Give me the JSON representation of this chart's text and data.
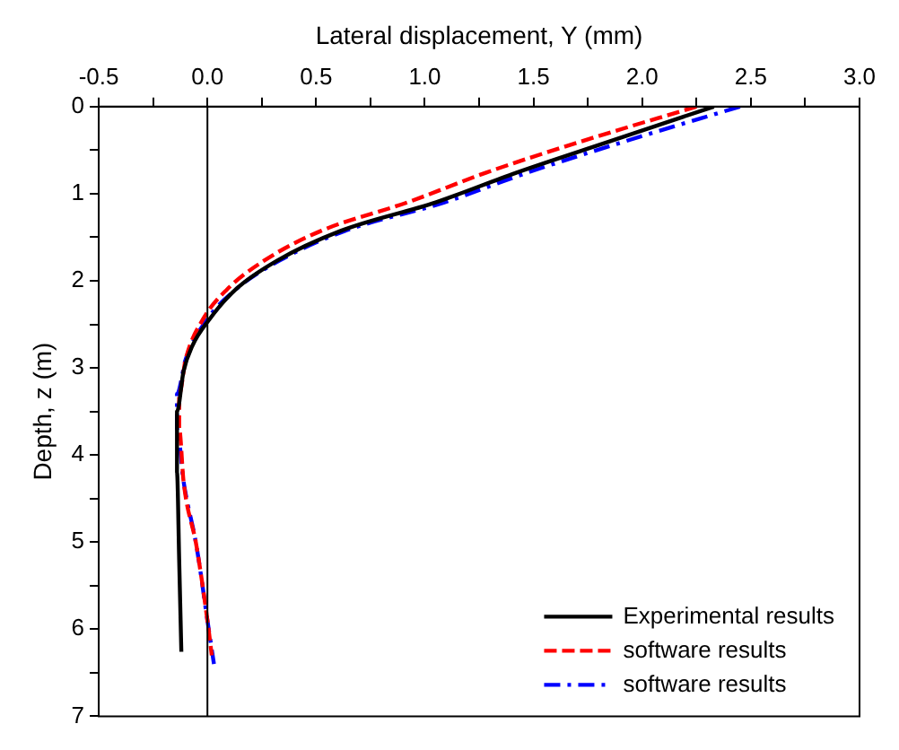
{
  "chart_data": {
    "type": "line",
    "xlabel": "Lateral displacement, Y (mm)",
    "ylabel": "Depth, z (m)",
    "xlim": [
      -0.5,
      3.0
    ],
    "xticks": [
      -0.5,
      {
        "value": -0.25,
        "label": null
      },
      "0.0",
      {
        "value": 0.25,
        "label": null
      },
      0.5,
      {
        "value": 0.75,
        "label": null
      },
      "1.0",
      {
        "value": 1.25,
        "label": null
      },
      1.5,
      {
        "value": 1.75,
        "label": null
      },
      "2.0",
      {
        "value": 2.25,
        "label": null
      },
      2.5,
      {
        "value": 2.75,
        "label": null
      },
      "3.0"
    ],
    "ylim": [
      7,
      0
    ],
    "yticks": [
      0,
      {
        "value": 0.5,
        "label": null
      },
      1,
      {
        "value": 1.5,
        "label": null
      },
      2,
      {
        "value": 2.5,
        "label": null
      },
      3,
      {
        "value": 3.5,
        "label": null
      },
      4,
      {
        "value": 4.5,
        "label": null
      },
      5,
      {
        "value": 5.5,
        "label": null
      },
      6,
      {
        "value": 6.5,
        "label": null
      },
      7
    ],
    "grid": false,
    "legend": "bottom right",
    "marker": "none",
    "ref_lines": [
      {
        "axis": "x",
        "value": 0,
        "color": "#000000"
      }
    ],
    "series": [
      {
        "name": "Experimental results",
        "color": "#000000",
        "line_style": "solid",
        "x": [
          2.33,
          1.85,
          1.42,
          1.05,
          0.61,
          0.32,
          0.13,
          0.01,
          -0.07,
          -0.11,
          -0.14,
          -0.14,
          -0.13,
          -0.12
        ],
        "values": [
          0,
          0.4,
          0.76,
          1.1,
          1.43,
          1.77,
          2.1,
          2.44,
          2.75,
          3.04,
          3.5,
          4.2,
          5.2,
          6.26
        ]
      },
      {
        "name": "software results",
        "color": "#ff0000",
        "line_style": "dashed",
        "x": [
          2.25,
          1.72,
          1.28,
          0.92,
          0.52,
          0.26,
          0.09,
          -0.02,
          -0.1,
          -0.13,
          -0.13,
          -0.11,
          -0.05,
          0.0,
          0.02
        ],
        "values": [
          0,
          0.4,
          0.76,
          1.1,
          1.43,
          1.77,
          2.1,
          2.44,
          2.9,
          3.3,
          3.7,
          4.3,
          5.05,
          5.9,
          6.3
        ]
      },
      {
        "name": "software results",
        "color": "#0000ff",
        "line_style": "dashdot",
        "x": [
          2.45,
          1.92,
          1.47,
          1.09,
          0.63,
          0.33,
          0.13,
          0.0,
          -0.1,
          -0.14,
          -0.14,
          -0.11,
          -0.05,
          0.0,
          0.03
        ],
        "values": [
          0,
          0.4,
          0.76,
          1.1,
          1.43,
          1.77,
          2.1,
          2.44,
          2.9,
          3.3,
          3.7,
          4.3,
          5.05,
          5.9,
          6.4
        ]
      }
    ]
  }
}
